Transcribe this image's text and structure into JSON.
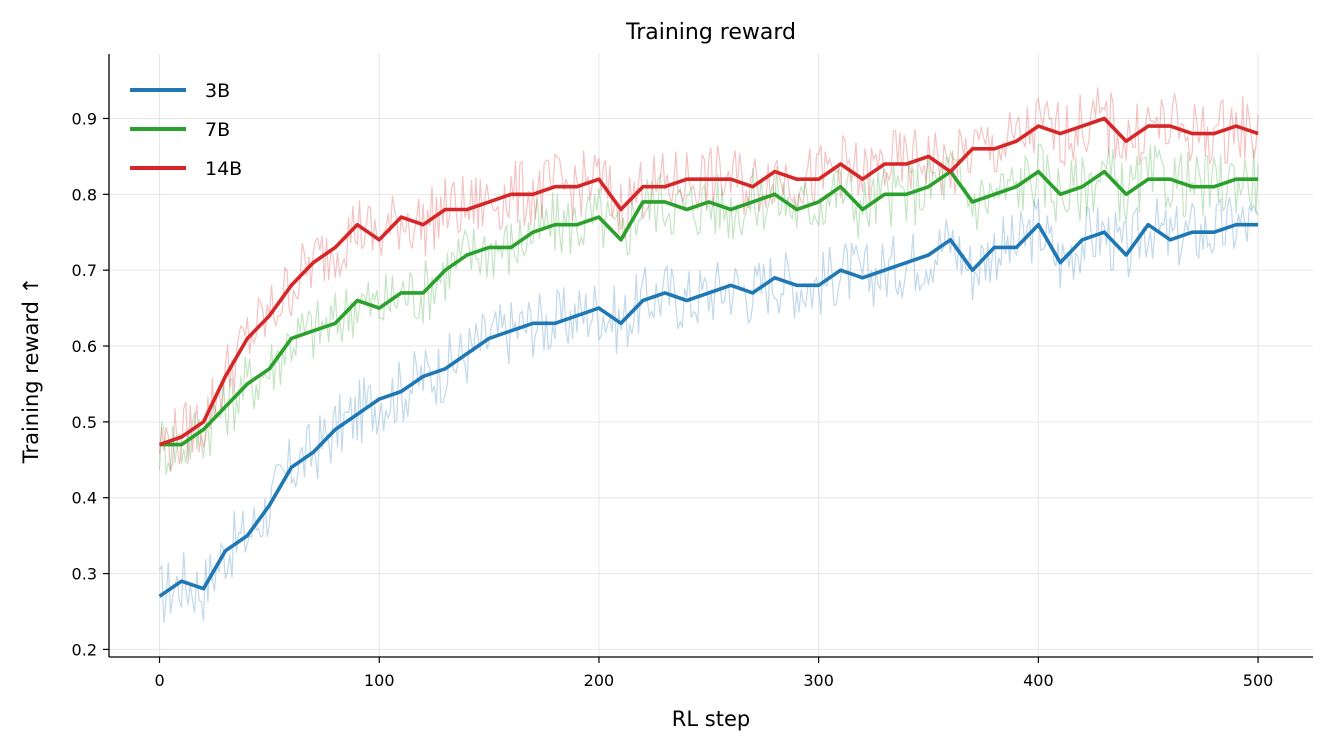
{
  "chart_data": {
    "type": "line",
    "title": "Training reward",
    "xlabel": "RL step",
    "ylabel": "Training reward ↑",
    "xlim": [
      -23,
      525
    ],
    "ylim": [
      0.19,
      0.985
    ],
    "x_ticks": [
      0,
      100,
      200,
      300,
      400,
      500
    ],
    "y_ticks": [
      0.2,
      0.3,
      0.4,
      0.5,
      0.6,
      0.7,
      0.8,
      0.9
    ],
    "grid": true,
    "legend_position": "top-left",
    "raw_series_shown": "faint noisy per-step curve behind each smoothed line",
    "x": [
      0,
      10,
      20,
      30,
      40,
      50,
      60,
      70,
      80,
      90,
      100,
      110,
      120,
      130,
      140,
      150,
      160,
      170,
      180,
      190,
      200,
      210,
      220,
      230,
      240,
      250,
      260,
      270,
      280,
      290,
      300,
      310,
      320,
      330,
      340,
      350,
      360,
      370,
      380,
      390,
      400,
      410,
      420,
      430,
      440,
      450,
      460,
      470,
      480,
      490,
      500
    ],
    "series": [
      {
        "name": "3B",
        "color": "#1f77b4",
        "values": [
          0.27,
          0.29,
          0.28,
          0.33,
          0.35,
          0.39,
          0.44,
          0.46,
          0.49,
          0.51,
          0.53,
          0.54,
          0.56,
          0.57,
          0.59,
          0.61,
          0.62,
          0.63,
          0.63,
          0.64,
          0.65,
          0.63,
          0.66,
          0.67,
          0.66,
          0.67,
          0.68,
          0.67,
          0.69,
          0.68,
          0.68,
          0.7,
          0.69,
          0.7,
          0.71,
          0.72,
          0.74,
          0.7,
          0.73,
          0.73,
          0.76,
          0.71,
          0.74,
          0.75,
          0.72,
          0.76,
          0.74,
          0.75,
          0.75,
          0.76,
          0.76
        ]
      },
      {
        "name": "7B",
        "color": "#2ca02c",
        "values": [
          0.47,
          0.47,
          0.49,
          0.52,
          0.55,
          0.57,
          0.61,
          0.62,
          0.63,
          0.66,
          0.65,
          0.67,
          0.67,
          0.7,
          0.72,
          0.73,
          0.73,
          0.75,
          0.76,
          0.76,
          0.77,
          0.74,
          0.79,
          0.79,
          0.78,
          0.79,
          0.78,
          0.79,
          0.8,
          0.78,
          0.79,
          0.81,
          0.78,
          0.8,
          0.8,
          0.81,
          0.83,
          0.79,
          0.8,
          0.81,
          0.83,
          0.8,
          0.81,
          0.83,
          0.8,
          0.82,
          0.82,
          0.81,
          0.81,
          0.82,
          0.82
        ]
      },
      {
        "name": "14B",
        "color": "#d62728",
        "values": [
          0.47,
          0.48,
          0.5,
          0.56,
          0.61,
          0.64,
          0.68,
          0.71,
          0.73,
          0.76,
          0.74,
          0.77,
          0.76,
          0.78,
          0.78,
          0.79,
          0.8,
          0.8,
          0.81,
          0.81,
          0.82,
          0.78,
          0.81,
          0.81,
          0.82,
          0.82,
          0.82,
          0.81,
          0.83,
          0.82,
          0.82,
          0.84,
          0.82,
          0.84,
          0.84,
          0.85,
          0.83,
          0.86,
          0.86,
          0.87,
          0.89,
          0.88,
          0.89,
          0.9,
          0.87,
          0.89,
          0.89,
          0.88,
          0.88,
          0.89,
          0.88
        ]
      }
    ]
  }
}
